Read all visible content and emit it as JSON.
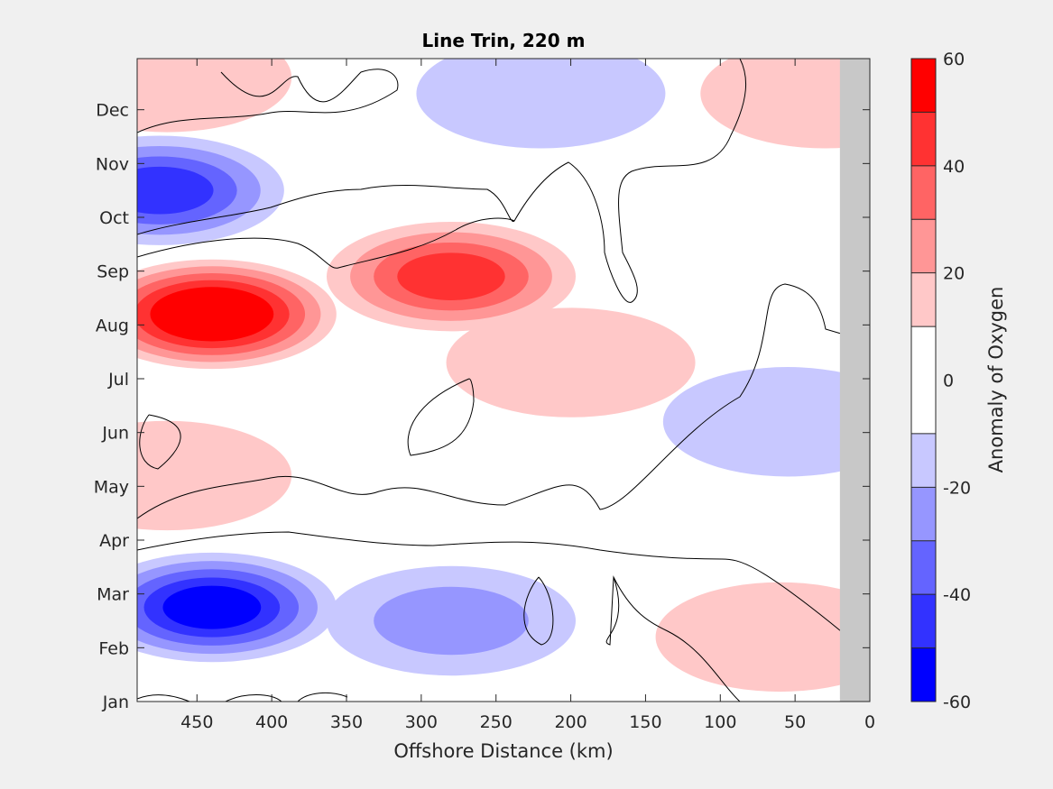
{
  "chart_data": {
    "type": "heatmap",
    "title": "Line Trin, 220 m",
    "xlabel": "Offshore Distance (km)",
    "ylabel": "",
    "xlim": [
      490,
      0
    ],
    "x_reversed": true,
    "x_ticks": [
      450,
      400,
      350,
      300,
      250,
      200,
      150,
      100,
      50,
      0
    ],
    "y_ticks": [
      "Jan",
      "Feb",
      "Mar",
      "Apr",
      "May",
      "Jun",
      "Jul",
      "Aug",
      "Sep",
      "Oct",
      "Nov",
      "Dec"
    ],
    "y_tick_month_index": [
      0,
      1,
      2,
      3,
      4,
      5,
      6,
      7,
      8,
      9,
      10,
      11
    ],
    "ylim_months": [
      0,
      11.95
    ],
    "colorbar": {
      "label": "Anomaly of Oxygen",
      "limits": [
        -60,
        60
      ],
      "ticks": [
        60,
        40,
        20,
        0,
        -20,
        -40,
        -60
      ],
      "levels": [
        -60,
        -50,
        -40,
        -30,
        -20,
        -10,
        10,
        20,
        30,
        40,
        50,
        60
      ],
      "colors": [
        "#0000ff",
        "#3232ff",
        "#6464ff",
        "#9696ff",
        "#c8c8ff",
        "#ffffff",
        "#ffc8c8",
        "#ff9696",
        "#ff6464",
        "#ff3232",
        "#ff0000"
      ]
    },
    "no_data_region_km": [
      0,
      20
    ],
    "no_data_color": "#c8c8c8",
    "contour_line_level": 0,
    "anomaly_features": [
      {
        "sign": "negative",
        "peak": -55,
        "x_km": 440,
        "month": 1.75
      },
      {
        "sign": "negative",
        "peak": -45,
        "x_km": 475,
        "month": 9.5
      },
      {
        "sign": "negative",
        "peak": -25,
        "x_km": 280,
        "month": 1.5
      },
      {
        "sign": "negative",
        "peak": -15,
        "x_km": 220,
        "month": 11.3
      },
      {
        "sign": "negative",
        "peak": -15,
        "x_km": 55,
        "month": 5.2
      },
      {
        "sign": "positive",
        "peak": 62,
        "x_km": 440,
        "month": 7.2
      },
      {
        "sign": "positive",
        "peak": 42,
        "x_km": 280,
        "month": 7.9
      },
      {
        "sign": "positive",
        "peak": 15,
        "x_km": 200,
        "month": 6.3
      },
      {
        "sign": "positive",
        "peak": 15,
        "x_km": 470,
        "month": 4.2
      },
      {
        "sign": "positive",
        "peak": 20,
        "x_km": 470,
        "month": 11.6
      },
      {
        "sign": "positive",
        "peak": 15,
        "x_km": 60,
        "month": 1.2
      },
      {
        "sign": "positive",
        "peak": 12,
        "x_km": 30,
        "month": 11.3
      }
    ]
  }
}
